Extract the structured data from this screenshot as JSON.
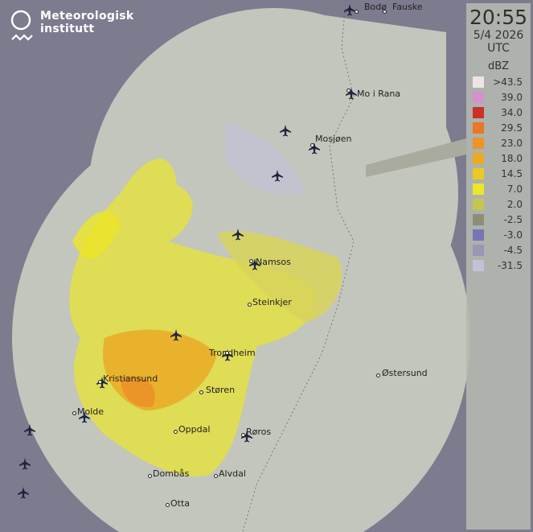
{
  "logo": {
    "line1": "Meteorologisk",
    "line2": "institutt"
  },
  "panel": {
    "time": "20:55",
    "date": "5/4 2026",
    "timezone": "UTC",
    "unit": "dBZ",
    "legend": [
      {
        "label": ">43.5",
        "color": "#eee4e6"
      },
      {
        "label": "39.0",
        "color": "#d690cc"
      },
      {
        "label": "34.0",
        "color": "#cc3028"
      },
      {
        "label": "29.5",
        "color": "#e87828"
      },
      {
        "label": "23.0",
        "color": "#ec9428"
      },
      {
        "label": "18.0",
        "color": "#eaaa24"
      },
      {
        "label": "14.5",
        "color": "#eaca24"
      },
      {
        "label": "7.0",
        "color": "#ece628"
      },
      {
        "label": "2.0",
        "color": "#c8c450"
      },
      {
        "label": "-2.5",
        "color": "#8e8e78"
      },
      {
        "label": "-3.0",
        "color": "#7676b4"
      },
      {
        "label": "-4.5",
        "color": "#9898b4"
      },
      {
        "label": "-31.5",
        "color": "#c2c2d6"
      }
    ]
  },
  "cities": [
    {
      "name": "Bodø"
    },
    {
      "name": "Fauske"
    },
    {
      "name": "Mo i Rana"
    },
    {
      "name": "Mosjøen"
    },
    {
      "name": "Namsos"
    },
    {
      "name": "Steinkjer"
    },
    {
      "name": "Trondheim"
    },
    {
      "name": "Kristiansund"
    },
    {
      "name": "Molde"
    },
    {
      "name": "Støren"
    },
    {
      "name": "Oppdal"
    },
    {
      "name": "Røros"
    },
    {
      "name": "Dombås"
    },
    {
      "name": "Alvdal"
    },
    {
      "name": "Otta"
    },
    {
      "name": "Østersund"
    }
  ],
  "map_colors": {
    "outside": "#7d7b8e",
    "coverage": "#c3c6bc",
    "land_outline": "#555"
  }
}
